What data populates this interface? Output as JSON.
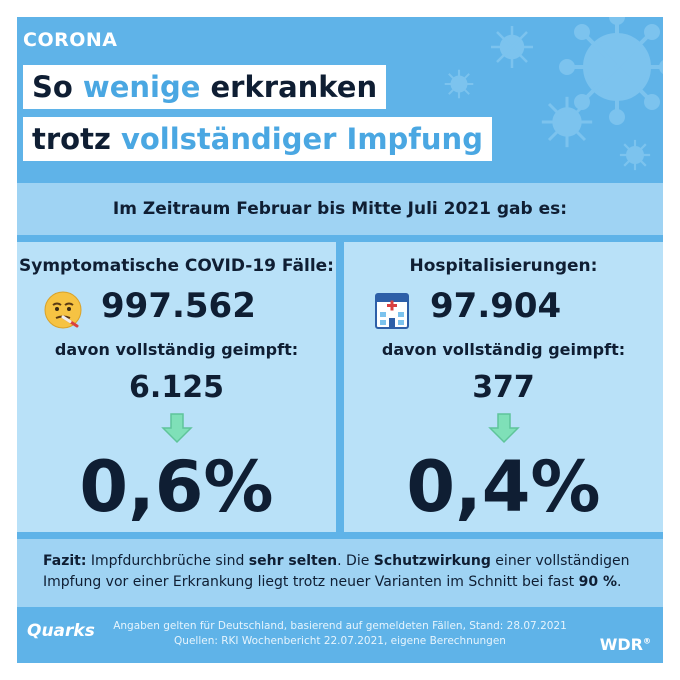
{
  "header": {
    "tag": "CORONA",
    "title_line1": {
      "part1": "So",
      "accent": "wenige",
      "part2": "erkranken"
    },
    "title_line2": {
      "part1": "trotz",
      "accent": "vollständiger Impfung"
    }
  },
  "intro": "Im Zeitraum Februar bis Mitte Juli 2021 gab es:",
  "left_panel": {
    "heading": "Symptomatische COVID-19 Fälle:",
    "icon": "sick-face-icon",
    "total": "997.562",
    "sub_label": "davon vollständig geimpft:",
    "vaccinated": "6.125",
    "percent": "0,6%"
  },
  "right_panel": {
    "heading": "Hospitalisierungen:",
    "icon": "hospital-icon",
    "total": "97.904",
    "sub_label": "davon vollständig geimpft:",
    "vaccinated": "377",
    "percent": "0,4%"
  },
  "fazit": {
    "label": "Fazit:",
    "t1": " Impfdurchbrüche sind ",
    "b1": "sehr selten",
    "t2": ". Die ",
    "b2": "Schutzwirkung",
    "t3": " einer vollständigen Impfung vor einer Erkrankung liegt trotz neuer Varianten im Schnitt bei fast ",
    "b3": "90 %",
    "t4": "."
  },
  "footer": {
    "brand": "Quarks",
    "source_line1": "Angaben gelten für Deutschland, basierend auf gemeldeten Fällen, Stand: 28.07.2021",
    "source_line2": "Quellen: RKI Wochenbericht 22.07.2021, eigene Berechnungen",
    "broadcaster": "WDR",
    "registered": "®"
  },
  "colors": {
    "background": "#5fb3e8",
    "accent": "#4aa7e2",
    "text": "#0f1e33",
    "arrow": "#7fe0b8"
  }
}
